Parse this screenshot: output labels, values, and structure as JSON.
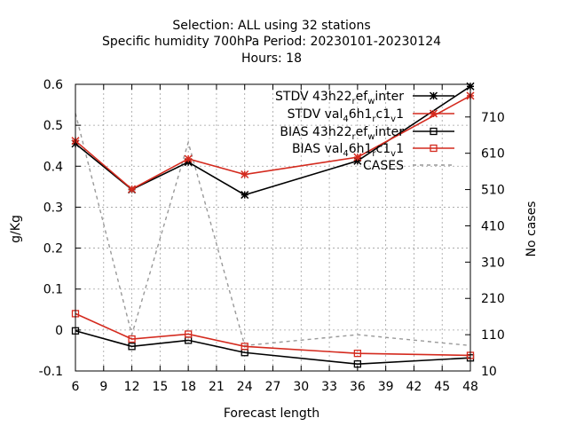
{
  "chart_data": {
    "type": "line",
    "title_lines": [
      "Selection: ALL using    32 stations",
      "Specific humidity 700hPa   Period: 20230101-20230124",
      "Hours:  18"
    ],
    "xlabel": "Forecast length",
    "ylabel": "g/Kg",
    "y2label": "No cases",
    "x_ticks": [
      6,
      9,
      12,
      15,
      18,
      21,
      24,
      27,
      30,
      33,
      36,
      39,
      42,
      45,
      48
    ],
    "y_ticks": [
      -0.1,
      0,
      0.1,
      0.2,
      0.3,
      0.4,
      0.5,
      0.6
    ],
    "y_tick_labels": [
      "-0.1",
      "0",
      "0.1",
      "0.2",
      "0.3",
      "0.4",
      "0.5",
      "0.6"
    ],
    "y2_ticks": [
      10,
      110,
      210,
      310,
      410,
      510,
      610,
      710
    ],
    "xlim": [
      6,
      48
    ],
    "ylim": [
      -0.1,
      0.6
    ],
    "y2lim": [
      10,
      800
    ],
    "grid": true,
    "legend_placement": "top-right",
    "series": [
      {
        "name": "STDV 43h22_ref_winter",
        "legend_parts": [
          "STDV 43h22",
          "r",
          "ef",
          "w",
          "inter"
        ],
        "axis": "y1",
        "color": "#000000",
        "marker": "star",
        "dash": "solid",
        "x": [
          6,
          12,
          18,
          24,
          36,
          48
        ],
        "values": [
          0.455,
          0.343,
          0.41,
          0.33,
          0.413,
          0.595
        ]
      },
      {
        "name": "STDV val_46h1_rc1_v1",
        "legend_parts": [
          "STDV val",
          "4",
          "6h1",
          "r",
          "c1",
          "v",
          "1"
        ],
        "axis": "y1",
        "color": "#d42a1e",
        "marker": "star",
        "dash": "solid",
        "x": [
          6,
          12,
          18,
          24,
          36,
          48
        ],
        "values": [
          0.462,
          0.344,
          0.418,
          0.38,
          0.422,
          0.572
        ]
      },
      {
        "name": "BIAS 43h22_ref_winter",
        "legend_parts": [
          "BIAS 43h22",
          "r",
          "ef",
          "w",
          "inter"
        ],
        "axis": "y1",
        "color": "#000000",
        "marker": "square",
        "dash": "solid",
        "x": [
          6,
          12,
          18,
          24,
          36,
          48
        ],
        "values": [
          -0.002,
          -0.04,
          -0.025,
          -0.055,
          -0.083,
          -0.068
        ]
      },
      {
        "name": "BIAS val_46h1_rc1_v1",
        "legend_parts": [
          "BIAS val",
          "4",
          "6h1",
          "r",
          "c1",
          "v",
          "1"
        ],
        "axis": "y1",
        "color": "#d42a1e",
        "marker": "square",
        "dash": "solid",
        "x": [
          6,
          12,
          18,
          24,
          36,
          48
        ],
        "values": [
          0.04,
          -0.022,
          -0.01,
          -0.04,
          -0.057,
          -0.062
        ]
      },
      {
        "name": "CASES",
        "legend_parts": [
          "CASES"
        ],
        "axis": "y2",
        "color": "#999999",
        "marker": "none",
        "dash": "dashed",
        "x": [
          6,
          12,
          18,
          24,
          36,
          48
        ],
        "values": [
          720,
          110,
          640,
          80,
          110,
          80
        ]
      }
    ]
  }
}
